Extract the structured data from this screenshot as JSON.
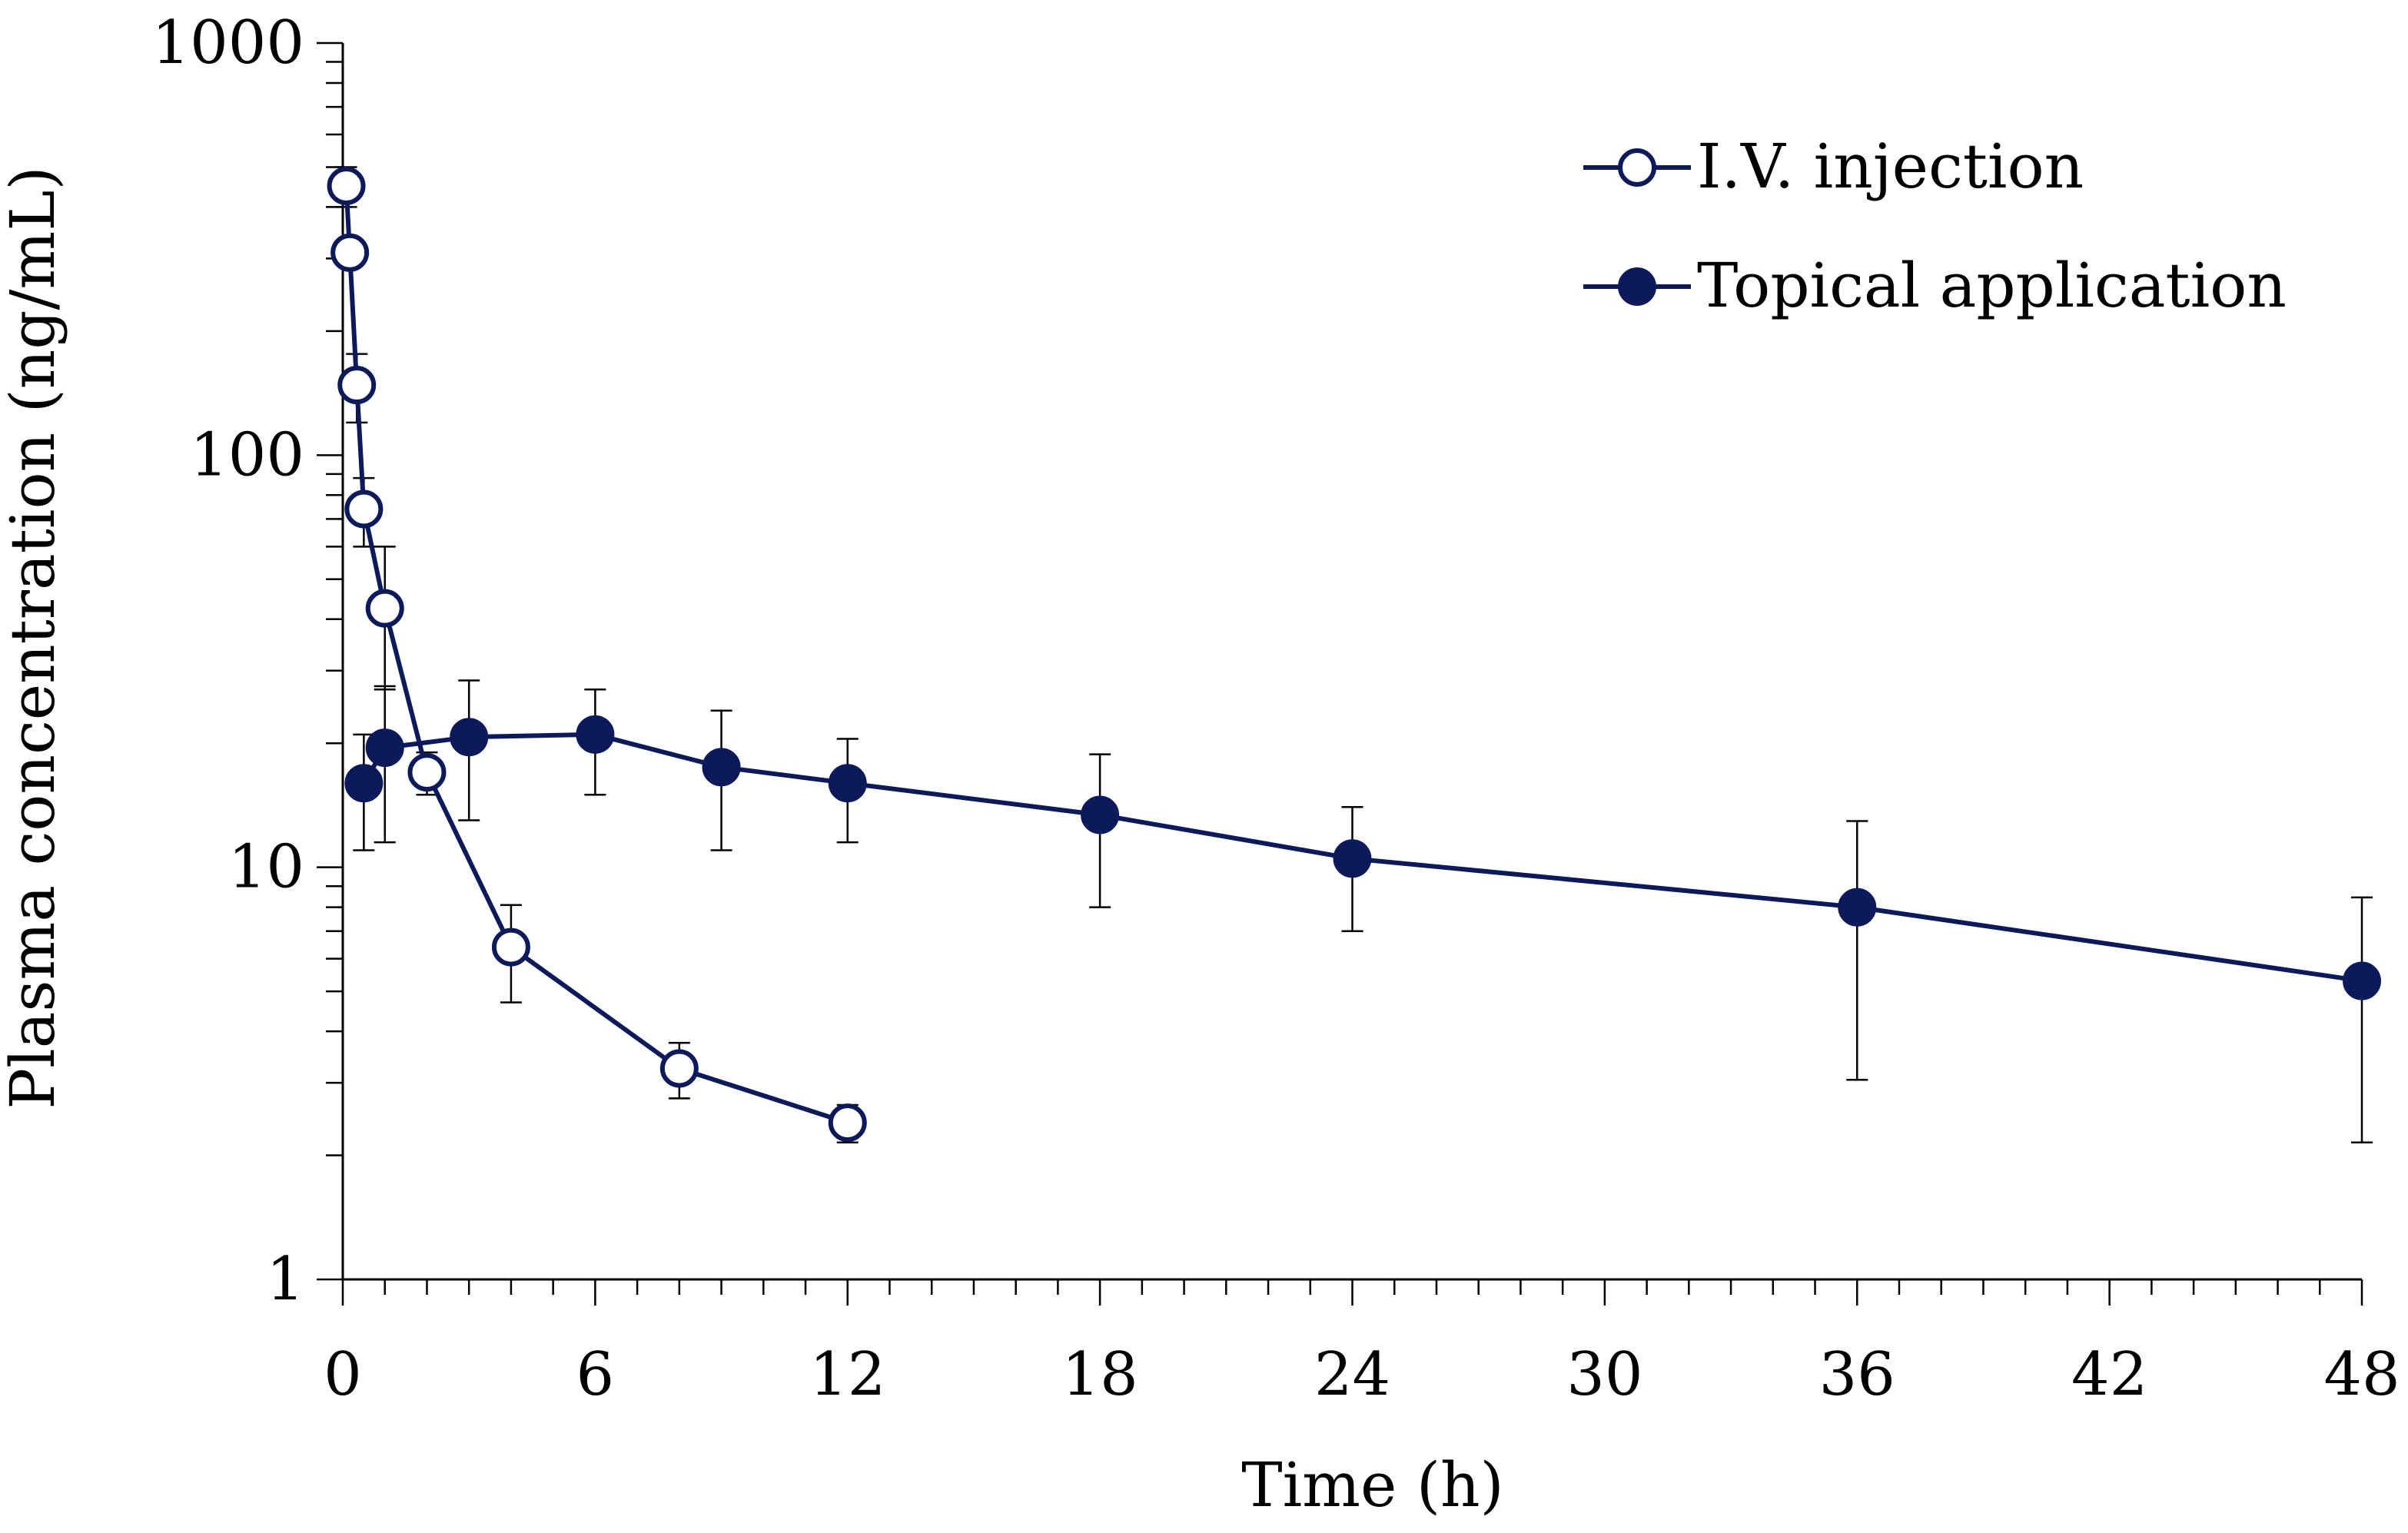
{
  "chart_data": {
    "type": "line",
    "title": "",
    "xlabel": "Time (h)",
    "ylabel": "Plasma concentration (ng/mL)",
    "xlim": [
      0,
      48
    ],
    "ylim": [
      1,
      1000
    ],
    "y_scale": "log",
    "x_ticks": [
      0,
      6,
      12,
      18,
      24,
      30,
      36,
      42,
      48
    ],
    "x_tick_labels": [
      "0",
      "6",
      "12",
      "18",
      "24",
      "30",
      "36",
      "42",
      "48"
    ],
    "y_ticks": [
      1,
      10,
      100,
      1000
    ],
    "y_tick_labels": [
      "1",
      "10",
      "100",
      "1000"
    ],
    "legend_position": "top-right",
    "colors": {
      "series": "#0c1a5b",
      "axis": "#000000"
    },
    "series": [
      {
        "name": "I.V. injection",
        "marker": "open-circle",
        "points": [
          {
            "x": 0.083,
            "y": 450,
            "err_low": 400,
            "err_high": 500
          },
          {
            "x": 0.167,
            "y": 310,
            "err_low": 285,
            "err_high": 335
          },
          {
            "x": 0.333,
            "y": 148,
            "err_low": 120,
            "err_high": 176
          },
          {
            "x": 0.5,
            "y": 74,
            "err_low": 60,
            "err_high": 88
          },
          {
            "x": 1,
            "y": 42.5,
            "err_low": 27,
            "err_high": 60
          },
          {
            "x": 2,
            "y": 17,
            "err_low": 15,
            "err_high": 19
          },
          {
            "x": 4,
            "y": 6.4,
            "err_low": 4.7,
            "err_high": 8.1
          },
          {
            "x": 8,
            "y": 3.25,
            "err_low": 2.75,
            "err_high": 3.75
          },
          {
            "x": 12,
            "y": 2.4,
            "err_low": 2.15,
            "err_high": 2.65
          }
        ]
      },
      {
        "name": "Topical application",
        "marker": "filled-circle",
        "points": [
          {
            "x": 0.5,
            "y": 16,
            "err_low": 11,
            "err_high": 21
          },
          {
            "x": 1,
            "y": 19.5,
            "err_low": 11.5,
            "err_high": 27.5
          },
          {
            "x": 3,
            "y": 20.7,
            "err_low": 13,
            "err_high": 28.4
          },
          {
            "x": 6,
            "y": 21,
            "err_low": 15,
            "err_high": 27
          },
          {
            "x": 9,
            "y": 17.5,
            "err_low": 11,
            "err_high": 24
          },
          {
            "x": 12,
            "y": 16,
            "err_low": 11.5,
            "err_high": 20.5
          },
          {
            "x": 18,
            "y": 13.4,
            "err_low": 8,
            "err_high": 18.8
          },
          {
            "x": 24,
            "y": 10.5,
            "err_low": 7,
            "err_high": 14
          },
          {
            "x": 36,
            "y": 8,
            "err_low": 3.05,
            "err_high": 12.95
          },
          {
            "x": 48,
            "y": 5.3,
            "err_low": 2.15,
            "err_high": 8.45
          }
        ]
      }
    ]
  }
}
